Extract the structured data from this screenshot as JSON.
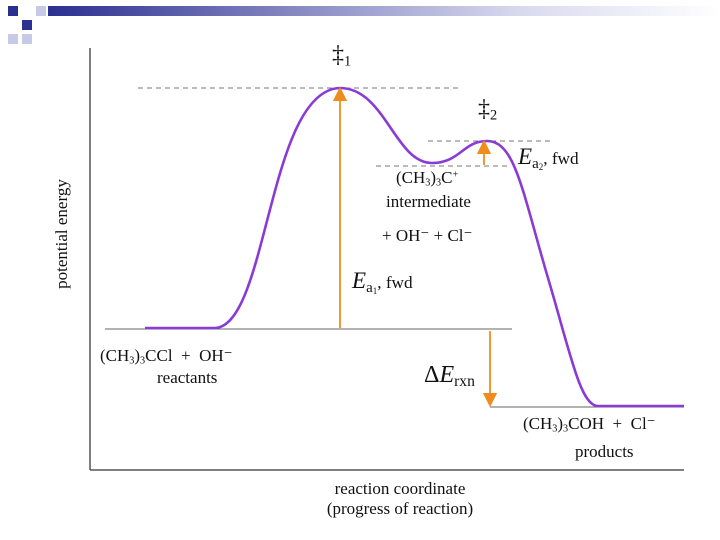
{
  "axes": {
    "ylabel": "potential energy",
    "xlabel_line1": "reaction coordinate",
    "xlabel_line2": "(progress of reaction)"
  },
  "transition_states": {
    "ts1_symbol": "‡",
    "ts1_sub": "1",
    "ts2_symbol": "‡",
    "ts2_sub": "2"
  },
  "activation_energies": {
    "ea_symbol": "E",
    "ea1_sub": "a",
    "ea1_subsub": "1",
    "ea1_suffix": ", fwd",
    "ea2_sub": "a",
    "ea2_subsub": "2",
    "ea2_suffix": ", fwd"
  },
  "intermediate": {
    "formula_pre": "(CH",
    "formula_sub1": "3",
    "formula_mid": ")",
    "formula_sub2": "3",
    "formula_end": "C",
    "formula_sup": "+",
    "label": "intermediate",
    "others": "+ OH⁻ + Cl⁻"
  },
  "reactants": {
    "formula_pre": "(CH",
    "formula_sub1": "3",
    "formula_mid": ")",
    "formula_sub2": "3",
    "formula_end": "CCl  +  OH⁻",
    "label": "reactants"
  },
  "products": {
    "formula_pre": "(CH",
    "formula_sub1": "3",
    "formula_mid": ")",
    "formula_sub2": "3",
    "formula_end": "COH  +  Cl⁻",
    "label": "products"
  },
  "reaction_energy": {
    "delta": "Δ",
    "e": "E",
    "sub": "rxn"
  },
  "colors": {
    "curve": "#8a3bd6",
    "arrow": "#f08c1e",
    "decor_blue": "#2b2f8f",
    "decor_light": "#c7c9e6"
  }
}
